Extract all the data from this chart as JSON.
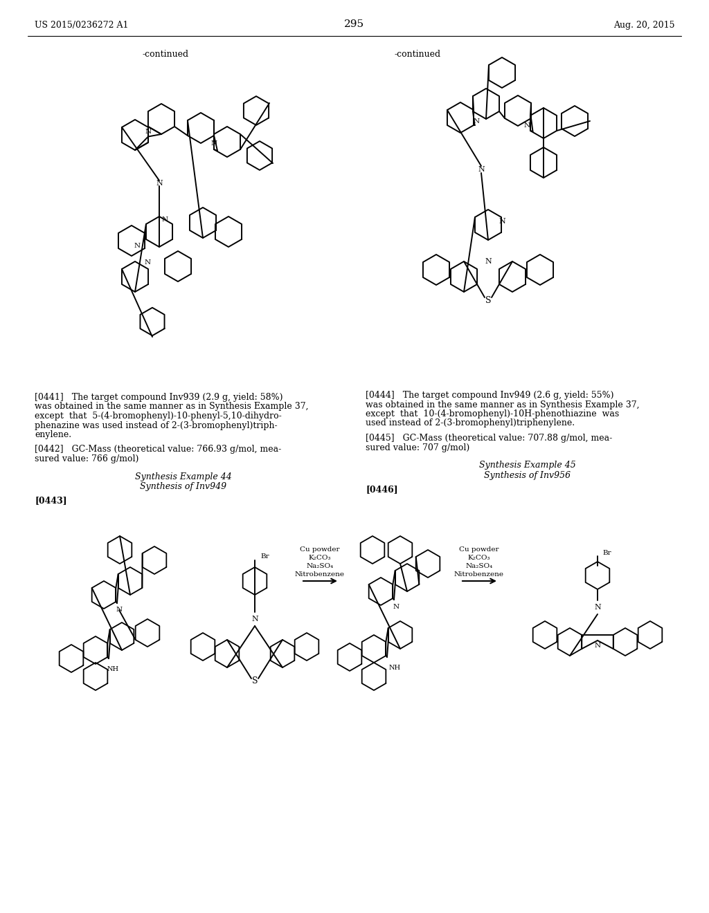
{
  "page_number": "295",
  "patent_number": "US 2015/0236272 A1",
  "patent_date": "Aug. 20, 2015",
  "background_color": "#ffffff",
  "continued_left": "-continued",
  "continued_right": "-continued",
  "p0441_lines": [
    "[0441]   The target compound Inv939 (2.9 g, yield: 58%)",
    "was obtained in the same manner as in Synthesis Example 37,",
    "except  that  5-(4-bromophenyl)-10-phenyl-5,10-dihydro-",
    "phenazine was used instead of 2-(3-bromophenyl)triph-",
    "enylene."
  ],
  "p0442_lines": [
    "[0442]   GC-Mass (theoretical value: 766.93 g/mol, mea-",
    "sured value: 766 g/mol)"
  ],
  "synth44": "Synthesis Example 44",
  "synth_inv949": "Synthesis of Inv949",
  "p0443": "[0443]",
  "p0444_lines": [
    "[0444]   The target compound Inv949 (2.6 g, yield: 55%)",
    "was obtained in the same manner as in Synthesis Example 37,",
    "except  that  10-(4-bromophenyl)-10H-phenothiazine  was",
    "used instead of 2-(3-bromophenyl)triphenylene."
  ],
  "p0445_lines": [
    "[0445]   GC-Mass (theoretical value: 707.88 g/mol, mea-",
    "sured value: 707 g/mol)"
  ],
  "synth45": "Synthesis Example 45",
  "synth_inv956": "Synthesis of Inv956",
  "p0446": "[0446]",
  "reagents_left": [
    "Cu powder",
    "K₂CO₃",
    "Na₂SO₄",
    "Nitrobenzene"
  ],
  "reagents_right": [
    "Cu powder",
    "K₂CO₃",
    "Na₂SO₄",
    "Nitrobenzene"
  ]
}
